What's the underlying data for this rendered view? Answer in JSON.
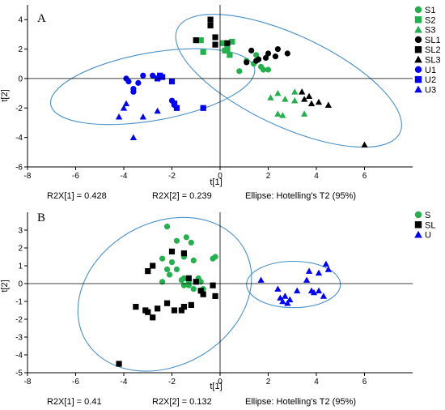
{
  "chart_data": [
    {
      "type": "scatter",
      "panel_label": "A",
      "xlabel": "t[1]",
      "ylabel": "t[2]",
      "xlim": [
        -8,
        8
      ],
      "ylim": [
        -6,
        5
      ],
      "xticks": [
        -8,
        -6,
        -4,
        -2,
        0,
        2,
        4,
        6
      ],
      "yticks": [
        -6,
        -4,
        -2,
        0,
        2,
        4
      ],
      "grid": false,
      "legend": "right",
      "footer": [
        "R2X[1] = 0.428",
        "R2X[2] = 0.239",
        "Ellipse: Hotelling's T2 (95%)"
      ],
      "ellipses": [
        {
          "cx": -2.8,
          "cy": -0.55,
          "rx": 4.3,
          "ry": 2.3,
          "angle": 10
        },
        {
          "cx": 2.85,
          "cy": -0.15,
          "rx": 5.1,
          "ry": 3.1,
          "angle": -25
        }
      ],
      "series": [
        {
          "name": "S1",
          "marker": "circle",
          "color": "#22b14c",
          "points": [
            [
              0.8,
              0.5
            ],
            [
              1.1,
              1.2
            ],
            [
              1.5,
              1.6
            ],
            [
              1.7,
              0.8
            ],
            [
              1.8,
              0.6
            ],
            [
              2.0,
              0.6
            ],
            [
              1.4,
              1.0
            ]
          ]
        },
        {
          "name": "S2",
          "marker": "square",
          "color": "#22b14c",
          "points": [
            [
              -0.8,
              2.6
            ],
            [
              -0.7,
              1.8
            ],
            [
              0.1,
              2.4
            ],
            [
              0.2,
              1.9
            ],
            [
              0.4,
              1.6
            ],
            [
              0.3,
              2.0
            ],
            [
              0.5,
              2.5
            ]
          ]
        },
        {
          "name": "S3",
          "marker": "triangle",
          "color": "#22b14c",
          "points": [
            [
              2.1,
              -1.3
            ],
            [
              2.4,
              -1.0
            ],
            [
              2.4,
              -2.4
            ],
            [
              2.6,
              -2.5
            ],
            [
              2.7,
              -1.4
            ],
            [
              3.1,
              -1.5
            ],
            [
              3.1,
              -0.9
            ],
            [
              3.5,
              -2.4
            ]
          ]
        },
        {
          "name": "SL1",
          "marker": "circle",
          "color": "#000000",
          "points": [
            [
              1.1,
              1.1
            ],
            [
              1.3,
              1.9
            ],
            [
              1.6,
              1.3
            ],
            [
              1.9,
              1.4
            ],
            [
              2.0,
              1.7
            ],
            [
              2.3,
              1.5
            ],
            [
              2.4,
              2.0
            ],
            [
              2.8,
              1.7
            ],
            [
              1.5,
              1.2
            ]
          ]
        },
        {
          "name": "SL2",
          "marker": "square",
          "color": "#000000",
          "points": [
            [
              -1.0,
              2.6
            ],
            [
              -0.4,
              3.6
            ],
            [
              -0.4,
              4.0
            ],
            [
              -0.2,
              2.8
            ],
            [
              -0.2,
              2.3
            ],
            [
              0.3,
              2.4
            ]
          ]
        },
        {
          "name": "SL3",
          "marker": "triangle",
          "color": "#000000",
          "points": [
            [
              3.4,
              -0.9
            ],
            [
              3.7,
              -1.2
            ],
            [
              3.8,
              -1.7
            ],
            [
              4.1,
              -1.6
            ],
            [
              4.5,
              -1.8
            ],
            [
              3.5,
              -1.4
            ],
            [
              6.0,
              -4.5
            ]
          ]
        },
        {
          "name": "U1",
          "marker": "circle",
          "color": "#0000ff",
          "points": [
            [
              -3.9,
              0.0
            ],
            [
              -3.8,
              -0.2
            ],
            [
              -3.6,
              -0.9
            ],
            [
              -3.4,
              -0.3
            ],
            [
              -3.2,
              0.2
            ],
            [
              -2.8,
              0.2
            ],
            [
              -1.9,
              -1.8
            ],
            [
              -2.0,
              -1.5
            ],
            [
              -3.6,
              -0.7
            ]
          ]
        },
        {
          "name": "U2",
          "marker": "square",
          "color": "#0000ff",
          "points": [
            [
              -2.6,
              0.0
            ],
            [
              -2.4,
              0.1
            ],
            [
              -2.0,
              -0.2
            ],
            [
              -1.9,
              -1.7
            ],
            [
              -1.8,
              -2.0
            ],
            [
              -0.7,
              -2.0
            ],
            [
              -2.5,
              0.2
            ]
          ]
        },
        {
          "name": "U3",
          "marker": "triangle",
          "color": "#0000ff",
          "points": [
            [
              -4.2,
              -2.6
            ],
            [
              -3.9,
              -1.7
            ],
            [
              -3.6,
              -4.0
            ],
            [
              -3.2,
              -2.6
            ],
            [
              -2.6,
              -2.2
            ],
            [
              -4.0,
              -2.0
            ]
          ]
        }
      ]
    },
    {
      "type": "scatter",
      "panel_label": "B",
      "xlabel": "t[1]",
      "ylabel": "t[2]",
      "xlim": [
        -8,
        8
      ],
      "ylim": [
        -5,
        4
      ],
      "xticks": [
        -8,
        -6,
        -4,
        -2,
        0,
        2,
        4,
        6
      ],
      "yticks": [
        -5,
        -4,
        -3,
        -2,
        -1,
        0,
        1,
        2,
        3
      ],
      "grid": false,
      "legend": "right",
      "footer": [
        "R2X[1] = 0.41",
        "R2X[2] = 0.132",
        "Ellipse: Hotelling's T2 (95%)"
      ],
      "ellipses": [
        {
          "cx": -2.3,
          "cy": -0.6,
          "rx": 3.8,
          "ry": 4.0,
          "angle": 30
        },
        {
          "cx": 3.05,
          "cy": -0.05,
          "rx": 1.95,
          "ry": 1.3,
          "angle": 0
        }
      ],
      "series": [
        {
          "name": "S",
          "marker": "circle",
          "color": "#22b14c",
          "points": [
            [
              -2.2,
              3.2
            ],
            [
              -1.8,
              2.4
            ],
            [
              -1.4,
              2.6
            ],
            [
              -1.2,
              2.3
            ],
            [
              -2.4,
              1.4
            ],
            [
              -2.0,
              1.2
            ],
            [
              -1.5,
              1.5
            ],
            [
              -1.1,
              1.3
            ],
            [
              -0.3,
              1.4
            ],
            [
              -0.2,
              1.5
            ],
            [
              -2.2,
              0.8
            ],
            [
              -1.8,
              0.8
            ],
            [
              -1.6,
              0.2
            ],
            [
              -1.3,
              0.1
            ],
            [
              -0.9,
              0.3
            ],
            [
              -2.1,
              0.5
            ],
            [
              -1.5,
              -0.1
            ],
            [
              -1.1,
              -0.3
            ],
            [
              -0.7,
              -0.3
            ],
            [
              -2.4,
              0.1
            ],
            [
              -1.5,
              0.3
            ],
            [
              -1.3,
              -0.1
            ],
            [
              -0.8,
              0.1
            ]
          ]
        },
        {
          "name": "SL",
          "marker": "square",
          "color": "#000000",
          "points": [
            [
              -2.8,
              1.0
            ],
            [
              -3.0,
              0.7
            ],
            [
              -2.0,
              1.8
            ],
            [
              -1.5,
              1.7
            ],
            [
              -1.3,
              0.3
            ],
            [
              -1.0,
              0.1
            ],
            [
              -0.3,
              -0.1
            ],
            [
              -0.8,
              -0.4
            ],
            [
              -0.7,
              -0.6
            ],
            [
              -3.5,
              -1.3
            ],
            [
              -3.1,
              -1.5
            ],
            [
              -2.8,
              -1.9
            ],
            [
              -3.0,
              -1.6
            ],
            [
              -2.6,
              -1.4
            ],
            [
              -2.2,
              -1.1
            ],
            [
              -1.9,
              -1.5
            ],
            [
              -1.6,
              -1.5
            ],
            [
              -1.5,
              -1.3
            ],
            [
              -1.2,
              -1.2
            ],
            [
              -0.2,
              -0.7
            ],
            [
              -4.2,
              -4.5
            ]
          ]
        },
        {
          "name": "U",
          "marker": "triangle",
          "color": "#0000ff",
          "points": [
            [
              1.7,
              0.2
            ],
            [
              2.4,
              -0.3
            ],
            [
              2.5,
              -0.8
            ],
            [
              2.6,
              -1.0
            ],
            [
              2.7,
              -0.7
            ],
            [
              2.8,
              -1.1
            ],
            [
              2.9,
              -0.9
            ],
            [
              3.2,
              -0.4
            ],
            [
              3.6,
              0.2
            ],
            [
              3.7,
              0.7
            ],
            [
              3.8,
              -0.4
            ],
            [
              3.9,
              -0.5
            ],
            [
              4.1,
              0.6
            ],
            [
              4.1,
              -0.4
            ],
            [
              4.3,
              -0.7
            ],
            [
              4.4,
              1.1
            ],
            [
              4.5,
              0.8
            ]
          ]
        }
      ]
    }
  ]
}
